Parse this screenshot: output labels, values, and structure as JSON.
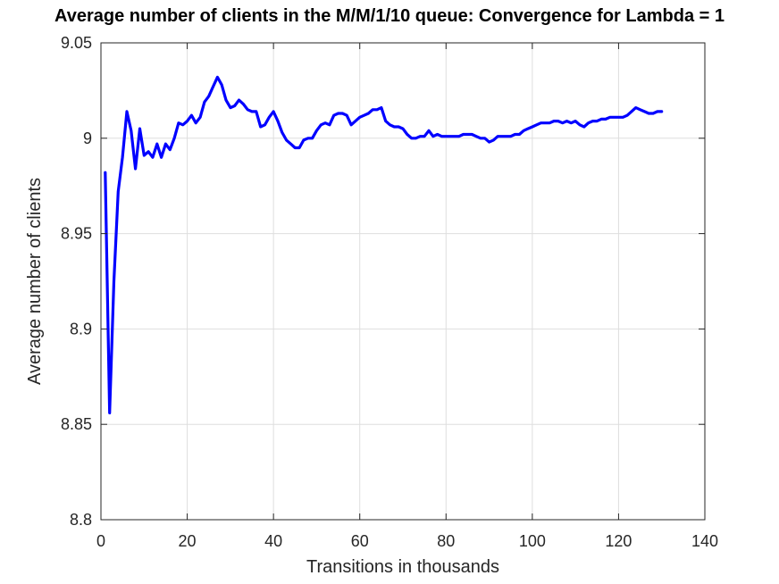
{
  "chart_data": {
    "type": "line",
    "title": "Average number of clients in the M/M/1/10 queue: Convergence for Lambda = 1",
    "xlabel": "Transitions in thousands",
    "ylabel": "Average number of clients",
    "xlim": [
      0,
      140
    ],
    "ylim": [
      8.8,
      9.05
    ],
    "xticks": [
      0,
      20,
      40,
      60,
      80,
      100,
      120,
      140
    ],
    "xtick_labels": [
      "0",
      "20",
      "40",
      "60",
      "80",
      "100",
      "120",
      "140"
    ],
    "yticks": [
      8.8,
      8.85,
      8.9,
      8.95,
      9,
      9.05
    ],
    "ytick_labels": [
      "8.8",
      "8.85",
      "8.9",
      "8.95",
      "9",
      "9.05"
    ],
    "grid": true,
    "series": [
      {
        "color": "#0000ff",
        "x": [
          1,
          2,
          3,
          4,
          5,
          6,
          7,
          8,
          9,
          10,
          11,
          12,
          13,
          14,
          15,
          16,
          17,
          18,
          19,
          20,
          21,
          22,
          23,
          24,
          25,
          26,
          27,
          28,
          29,
          30,
          31,
          32,
          33,
          34,
          35,
          36,
          37,
          38,
          39,
          40,
          41,
          42,
          43,
          44,
          45,
          46,
          47,
          48,
          49,
          50,
          51,
          52,
          53,
          54,
          55,
          56,
          57,
          58,
          59,
          60,
          61,
          62,
          63,
          64,
          65,
          66,
          67,
          68,
          69,
          70,
          71,
          72,
          73,
          74,
          75,
          76,
          77,
          78,
          79,
          80,
          81,
          82,
          83,
          84,
          85,
          86,
          87,
          88,
          89,
          90,
          91,
          92,
          93,
          94,
          95,
          96,
          97,
          98,
          99,
          100,
          101,
          102,
          103,
          104,
          105,
          106,
          107,
          108,
          109,
          110,
          111,
          112,
          113,
          114,
          115,
          116,
          117,
          118,
          119,
          120,
          121,
          122,
          123,
          124,
          125,
          126,
          127,
          128,
          129,
          130
        ],
        "y": [
          8.982,
          8.856,
          8.925,
          8.972,
          8.99,
          9.014,
          9.004,
          8.984,
          9.005,
          8.991,
          8.993,
          8.99,
          8.997,
          8.99,
          8.997,
          8.994,
          9.0,
          9.008,
          9.007,
          9.009,
          9.012,
          9.008,
          9.011,
          9.019,
          9.022,
          9.027,
          9.032,
          9.028,
          9.02,
          9.016,
          9.017,
          9.02,
          9.018,
          9.015,
          9.014,
          9.014,
          9.006,
          9.007,
          9.011,
          9.014,
          9.009,
          9.003,
          8.999,
          8.997,
          8.995,
          8.995,
          8.999,
          9.0,
          9.0,
          9.004,
          9.007,
          9.008,
          9.007,
          9.012,
          9.013,
          9.013,
          9.012,
          9.007,
          9.009,
          9.011,
          9.012,
          9.013,
          9.015,
          9.015,
          9.016,
          9.009,
          9.007,
          9.006,
          9.006,
          9.005,
          9.002,
          9.0,
          9.0,
          9.001,
          9.001,
          9.004,
          9.001,
          9.002,
          9.001,
          9.001,
          9.001,
          9.001,
          9.001,
          9.002,
          9.002,
          9.002,
          9.001,
          9.0,
          9.0,
          8.998,
          8.999,
          9.001,
          9.001,
          9.001,
          9.001,
          9.002,
          9.002,
          9.004,
          9.005,
          9.006,
          9.007,
          9.008,
          9.008,
          9.008,
          9.009,
          9.009,
          9.008,
          9.009,
          9.008,
          9.009,
          9.007,
          9.006,
          9.008,
          9.009,
          9.009,
          9.01,
          9.01,
          9.011,
          9.011,
          9.011,
          9.011,
          9.012,
          9.014,
          9.016,
          9.015,
          9.014,
          9.013,
          9.013,
          9.014,
          9.014
        ]
      }
    ]
  }
}
